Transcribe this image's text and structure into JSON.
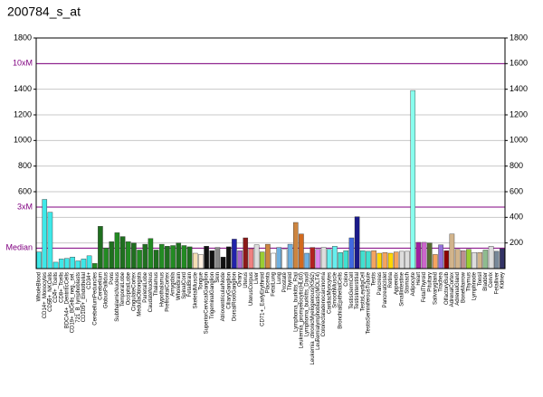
{
  "chart_data": {
    "type": "bar",
    "title": "200784_s_at",
    "categories": [
      "WholeBlood",
      "CD14+_Monocytes",
      "CD56+_NKCells",
      "CD4+_Tcells",
      "CD8+_Tcells",
      "BDCA4+_DentriticCells",
      "CD19+_BCells_neg._sel.",
      "721_B_lymphoblasts",
      "CD105+_Endothelial",
      "CD34+",
      "CerebellumPeduncles",
      "Cerebellum",
      "GlobusPallidus",
      "Pons",
      "SubthalamicNucleus",
      "TemporalLobe",
      "OccipitalLobe",
      "CingulateCortex",
      "MedullaOblongata",
      "ParietalLobe",
      "CaudateNucleus",
      "Thalamus",
      "Hypothalamus",
      "PrefrontalCortex",
      "Amygdala",
      "WholeBrain",
      "SpinalCord",
      "FetalBrain",
      "SkeletalMuscle",
      "Tongue",
      "SuperiorCervicalGanglion",
      "TrigeminalGanglion",
      "Skin",
      "AtrioventricularNode",
      "CiliaryGanglion",
      "DorsalRootGanglion",
      "Ovary",
      "Uterus",
      "UterusCorpus",
      "Liver",
      "CD71+_EarlyErythroid",
      "Placenta",
      "FetalLung",
      "Lung",
      "Prostate",
      "Thyroid",
      "Lymphoma_burkitts_Raji",
      "Leukemia_promyelocytic(HL60)",
      "Lymphoma_burkitts_Daudi",
      "Leukemia_chronicMyelogenous(K562)",
      "Leukemialymphoblastic(MOLT4)",
      "Colorectaladenocarcinoma",
      "CardiacMyocytes",
      "SmoothMuscle",
      "BronchialEpithelialCells",
      "Colon",
      "TestisGermCell",
      "TestisInterstitial",
      "TestisLeydigCell",
      "TestisSeminiferousTubule",
      "Testis",
      "Pancreas",
      "PancreaticIslet",
      "Retina",
      "Appendix",
      "SmallIntestine",
      "Stomach",
      "Adipocyte",
      "Heart",
      "FetalThyroid",
      "Pituitary",
      "Salivarygland",
      "Trachea",
      "OlfactoryBulb",
      "AdrenalCortex",
      "AdrenalGland",
      "BoneMarrow",
      "Thymus",
      "Lymphnode",
      "Tonsil",
      "Bladder",
      "Cervix",
      "Fetalliver",
      "Kidney"
    ],
    "values": [
      130,
      540,
      440,
      50,
      75,
      80,
      90,
      60,
      75,
      100,
      40,
      330,
      160,
      210,
      280,
      250,
      210,
      200,
      145,
      190,
      235,
      145,
      190,
      175,
      180,
      200,
      180,
      170,
      120,
      110,
      175,
      140,
      165,
      90,
      170,
      230,
      140,
      240,
      155,
      185,
      130,
      190,
      120,
      165,
      150,
      190,
      360,
      270,
      120,
      165,
      150,
      165,
      150,
      175,
      125,
      140,
      240,
      405,
      140,
      135,
      140,
      120,
      125,
      120,
      130,
      135,
      135,
      1390,
      205,
      205,
      200,
      110,
      185,
      140,
      270,
      150,
      140,
      150,
      125,
      125,
      145,
      175,
      135,
      155
    ],
    "colors": [
      "#3ee8e8",
      "#3ee8e8",
      "#3ee8e8",
      "#3ee8e8",
      "#3ee8e8",
      "#3ee8e8",
      "#3ee8e8",
      "#3ee8e8",
      "#3ee8e8",
      "#3ee8e8",
      "#228b22",
      "#1f6f1f",
      "#228b22",
      "#1f6f1f",
      "#228b22",
      "#1f6f1f",
      "#228b22",
      "#1f6f1f",
      "#228b22",
      "#1f6f1f",
      "#228b22",
      "#1f6f1f",
      "#228b22",
      "#1f6f1f",
      "#228b22",
      "#1f6f1f",
      "#228b22",
      "#1f6f1f",
      "#f5deb3",
      "#fff0e0",
      "#111111",
      "#111111",
      "#888888",
      "#111111",
      "#111111",
      "#2222aa",
      "#aa66cc",
      "#8b1a1a",
      "#f08080",
      "#dddddd",
      "#9acd32",
      "#cd853f",
      "#ffffff",
      "#6fb0e0",
      "#ffffff",
      "#6fb0e0",
      "#cd853f",
      "#d2691e",
      "#6fb0e0",
      "#b22222",
      "#dd88ee",
      "#dddddd",
      "#66eeee",
      "#66eeee",
      "#40e0d0",
      "#40e0d0",
      "#4169e1",
      "#1a1a8a",
      "#40e0d0",
      "#40e0d0",
      "#f4a460",
      "#ffd700",
      "#f4a460",
      "#ffd700",
      "#f4a460",
      "#dddddd",
      "#dddddd",
      "#88ffee",
      "#a020a0",
      "#cc66cc",
      "#556b2f",
      "#f4a460",
      "#9370db",
      "#8b0000",
      "#d2b48c",
      "#d2b48c",
      "#bc8f8f",
      "#9acd32",
      "#dddddd",
      "#d2b48c",
      "#8fbc8f",
      "#dddddd",
      "#778899",
      "#333366"
    ],
    "ylim": [
      0,
      1800
    ],
    "yticks": [
      200,
      400,
      600,
      800,
      1000,
      1200,
      1400,
      1600,
      1800
    ],
    "left_yticks": [
      600,
      800,
      1000,
      1200,
      1400,
      1800
    ],
    "reference_lines": [
      {
        "label": "10xM",
        "value": 1600
      },
      {
        "label": "3xM",
        "value": 480
      },
      {
        "label": "Median",
        "value": 160
      }
    ],
    "reference_color": "#800080",
    "grid": true
  }
}
